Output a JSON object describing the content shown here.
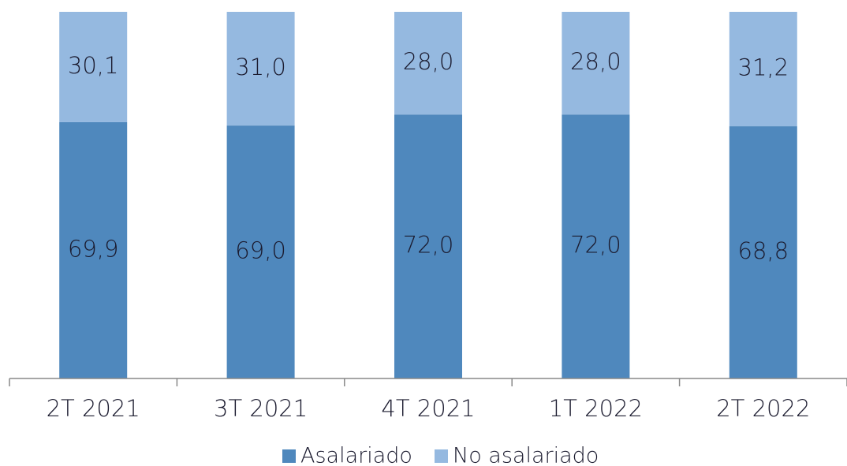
{
  "chart_data": {
    "type": "bar",
    "stacked": true,
    "categories": [
      "2T 2021",
      "3T 2021",
      "4T 2021",
      "1T 2022",
      "2T 2022"
    ],
    "series": [
      {
        "name": "Asalariado",
        "color": "#4f88bd",
        "values": [
          69.9,
          69.0,
          72.0,
          72.0,
          68.8
        ],
        "value_labels": [
          "69,9",
          "69,0",
          "72,0",
          "72,0",
          "68,8"
        ]
      },
      {
        "name": "No asalariado",
        "color": "#95b9e0",
        "values": [
          30.1,
          31.0,
          28.0,
          28.0,
          31.2
        ],
        "value_labels": [
          "30,1",
          "31,0",
          "28,0",
          "28,0",
          "31,2"
        ]
      }
    ],
    "ylim": [
      0,
      100
    ],
    "legend": "bottom"
  }
}
